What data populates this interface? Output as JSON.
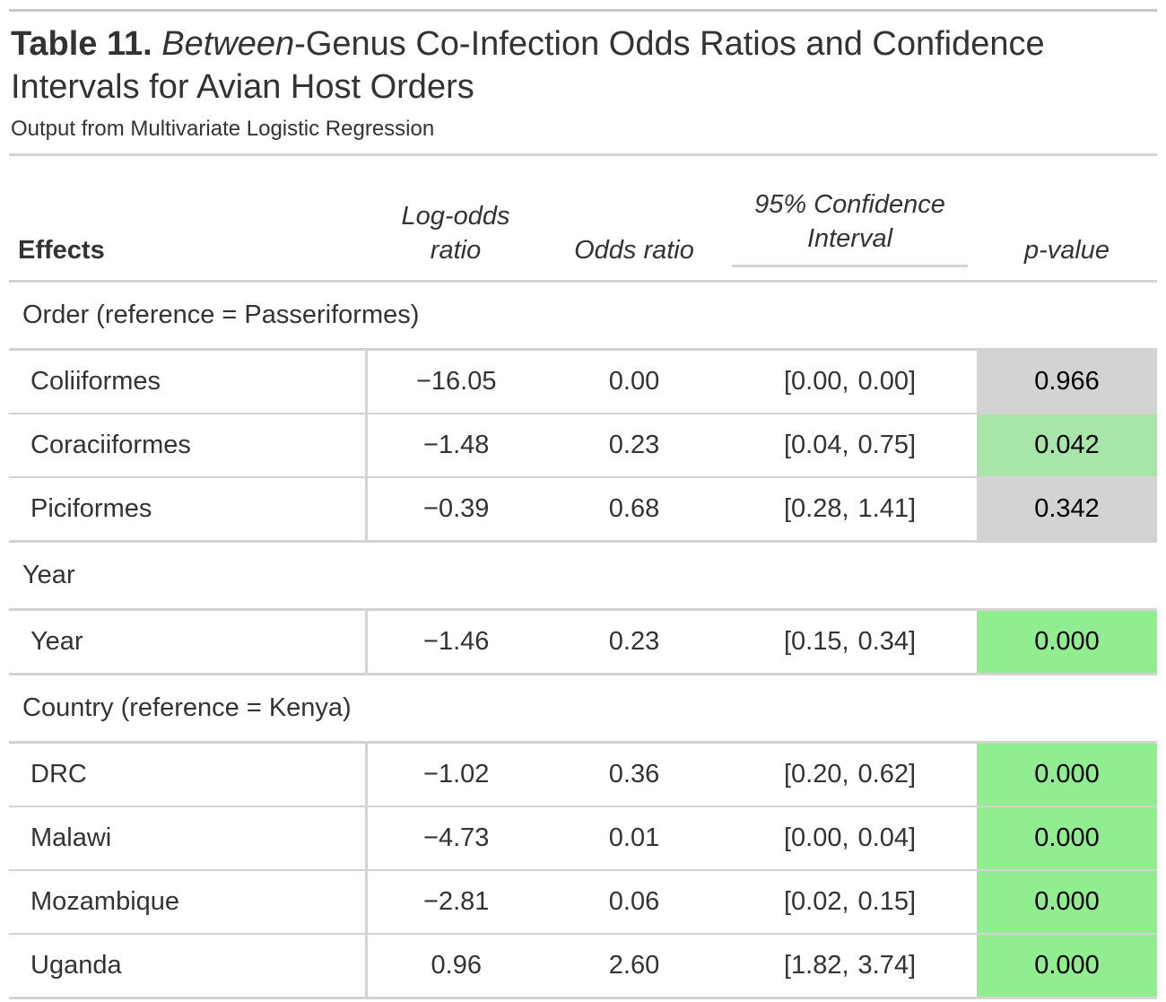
{
  "title": {
    "table_label": "Table 11.",
    "italic_word": "Between",
    "rest_line1": "-Genus Co-Infection Odds Ratios and Confidence",
    "line2": "Intervals for Avian Host Orders"
  },
  "subtitle": "Output from Multivariate Logistic Regression",
  "headers": {
    "effects": "Effects",
    "log_odds_line1": "Log-odds",
    "log_odds_line2": "ratio",
    "odds_ratio": "Odds ratio",
    "ci_line1": "95% Confidence",
    "ci_line2": "Interval",
    "p_value": "p-value"
  },
  "groups": [
    {
      "label": "Order (reference = Passeriformes)",
      "rows": [
        {
          "effect": "Coliiformes",
          "log_odds": "−16.05",
          "odds_ratio": "0.00",
          "ci_low": "[0.00,",
          "ci_high": "0.00]",
          "p_value": "0.966",
          "p_color": "#d3d3d3"
        },
        {
          "effect": "Coraciiformes",
          "log_odds": "−1.48",
          "odds_ratio": "0.23",
          "ci_low": "[0.04,",
          "ci_high": "0.75]",
          "p_value": "0.042",
          "p_color": "#a8e5a8"
        },
        {
          "effect": "Piciformes",
          "log_odds": "−0.39",
          "odds_ratio": "0.68",
          "ci_low": "[0.28,",
          "ci_high": "1.41]",
          "p_value": "0.342",
          "p_color": "#d3d3d3"
        }
      ]
    },
    {
      "label": "Year",
      "rows": [
        {
          "effect": "Year",
          "log_odds": "−1.46",
          "odds_ratio": "0.23",
          "ci_low": "[0.15,",
          "ci_high": "0.34]",
          "p_value": "0.000",
          "p_color": "#90ee90"
        }
      ]
    },
    {
      "label": "Country (reference = Kenya)",
      "rows": [
        {
          "effect": "DRC",
          "log_odds": "−1.02",
          "odds_ratio": "0.36",
          "ci_low": "[0.20,",
          "ci_high": "0.62]",
          "p_value": "0.000",
          "p_color": "#90ee90"
        },
        {
          "effect": "Malawi",
          "log_odds": "−4.73",
          "odds_ratio": "0.01",
          "ci_low": "[0.00,",
          "ci_high": "0.04]",
          "p_value": "0.000",
          "p_color": "#90ee90"
        },
        {
          "effect": "Mozambique",
          "log_odds": "−2.81",
          "odds_ratio": "0.06",
          "ci_low": "[0.02,",
          "ci_high": "0.15]",
          "p_value": "0.000",
          "p_color": "#90ee90"
        },
        {
          "effect": "Uganda",
          "log_odds": "0.96",
          "odds_ratio": "2.60",
          "ci_low": "[1.82,",
          "ci_high": "3.74]",
          "p_value": "0.000",
          "p_color": "#90ee90"
        }
      ]
    }
  ]
}
